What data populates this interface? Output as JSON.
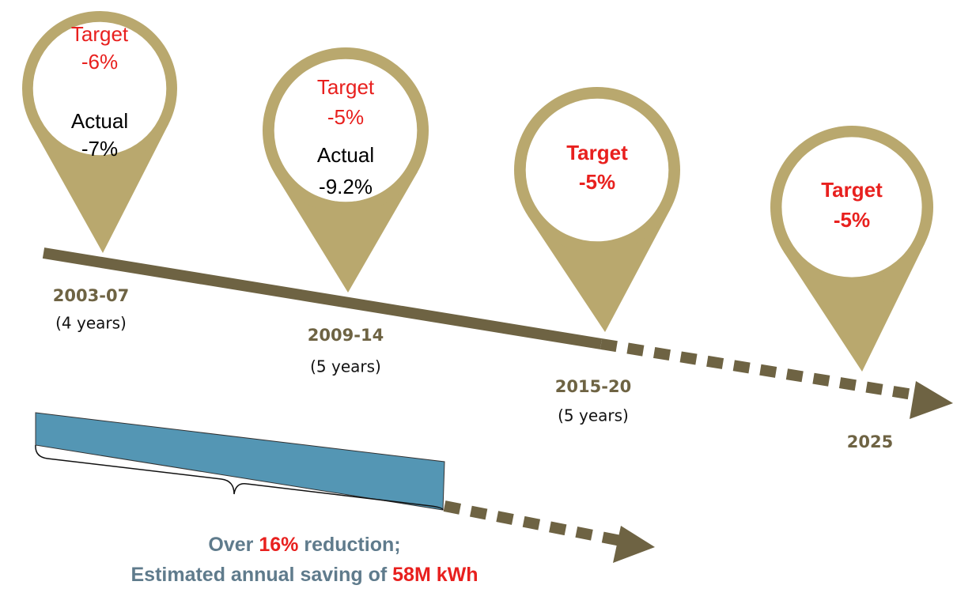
{
  "pins": [
    {
      "target_label": "Target",
      "target": "-6%",
      "actual_label": "Actual",
      "actual": "-7%",
      "period": "2003-07",
      "duration": "(4 years)"
    },
    {
      "target_label": "Target",
      "target": "-5%",
      "actual_label": "Actual",
      "actual": "-9.2%",
      "period": "2009-14",
      "duration": "(5 years)"
    },
    {
      "target_label": "Target",
      "target": "-5%",
      "period": "2015-20",
      "duration": "(5 years)"
    },
    {
      "target_label": "Target",
      "target": "-5%",
      "period": "2025"
    }
  ],
  "summary": {
    "line1": [
      "Over ",
      "16%",
      " reduction;"
    ],
    "line2": [
      "Estimated annual saving of ",
      "58M kWh"
    ]
  }
}
